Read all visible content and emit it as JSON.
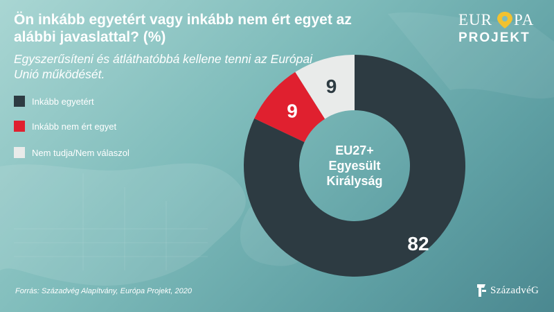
{
  "title": "Ön inkább egyetért vagy inkább nem ért egyet az alábbi javaslattal?  (%)",
  "subtitle": "Egyszerűsíteni és átláthatóbbá kellene tenni az Európai Unió működését.",
  "source": "Forrás: Századvég Alapítvány, Európa Projekt, 2020",
  "logos": {
    "europa_top": "EUR",
    "europa_top_end": "PA",
    "europa_bottom": "PROJEKT",
    "szazadveg": "SzázadvéG"
  },
  "colors": {
    "background": "#7fbcbb",
    "agree": "#2d3b42",
    "disagree": "#e0202f",
    "dont_know": "#e9ebea",
    "logo_pin": "#f2c230"
  },
  "chart_data": {
    "type": "pie",
    "donut": true,
    "center_label": [
      "EU27+",
      "Egyesült",
      "Királyság"
    ],
    "legend_position": "left",
    "slices": [
      {
        "label": "Inkább egyetért",
        "value": 82,
        "color": "#2d3b42"
      },
      {
        "label": "Inkább nem ért egyet",
        "value": 9,
        "color": "#e0202f"
      },
      {
        "label": "Nem tudja/Nem válaszol",
        "value": 9,
        "color": "#e9ebea"
      }
    ]
  }
}
